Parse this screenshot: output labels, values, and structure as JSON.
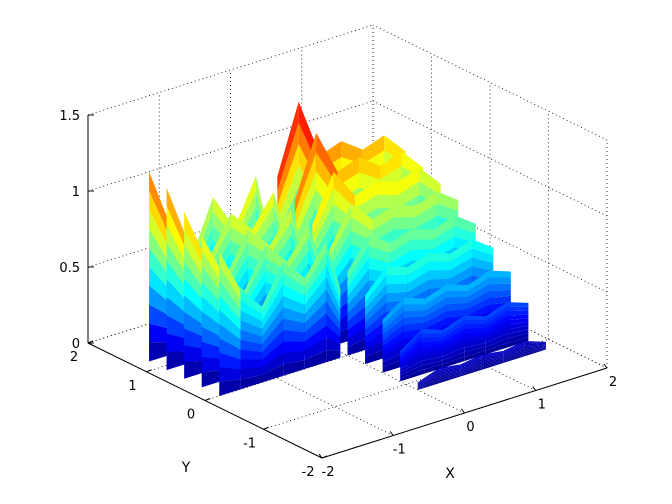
{
  "chart_data": {
    "type": "surface",
    "title": "",
    "xlabel": "X",
    "ylabel": "Y",
    "zlabel": "",
    "xlim": [
      -2,
      2
    ],
    "ylim": [
      -2,
      2
    ],
    "zlim": [
      0,
      1.5
    ],
    "x_ticks": [
      -2,
      -1,
      0,
      1,
      2
    ],
    "y_ticks": [
      -2,
      -1,
      0,
      1,
      2
    ],
    "z_ticks": [
      0,
      0.5,
      1,
      1.5
    ],
    "x_tick_labels": [
      "-2",
      "-1",
      "0",
      "1",
      "2"
    ],
    "y_tick_labels": [
      "-2",
      "-1",
      "0",
      "1",
      "2"
    ],
    "z_tick_labels": [
      "0",
      "0.5",
      "1",
      "1.5"
    ],
    "grid": true,
    "box": false,
    "colormap": "jet",
    "colormap_stops": [
      "#00008f",
      "#0000ff",
      "#0080ff",
      "#00ffff",
      "#80ff80",
      "#ffff00",
      "#ff8000",
      "#ff0000",
      "#800000"
    ],
    "surface_rows": [
      {
        "y": 1.2,
        "x": [
          -1.8,
          -1.5,
          -1.2,
          -0.9,
          -0.6,
          -0.3,
          -0.1
        ],
        "z": [
          1.25,
          0.85,
          0.6,
          0.95,
          0.7,
          1.0,
          0.55
        ]
      },
      {
        "y": 0.9,
        "x": [
          -1.8,
          -1.5,
          -1.2,
          -0.9,
          -0.6,
          -0.3,
          -0.1
        ],
        "z": [
          1.2,
          0.8,
          0.65,
          0.9,
          0.75,
          0.95,
          0.6
        ]
      },
      {
        "y": 0.6,
        "x": [
          -1.8,
          -1.5,
          -1.2,
          -0.9,
          -0.6,
          -0.3,
          -0.1
        ],
        "z": [
          1.1,
          0.75,
          0.6,
          0.85,
          0.7,
          0.9,
          0.55
        ]
      },
      {
        "y": 0.3,
        "x": [
          -1.8,
          -1.5,
          -1.2,
          -0.9,
          -0.6,
          -0.3,
          -0.1
        ],
        "z": [
          1.0,
          0.7,
          0.55,
          0.8,
          0.65,
          0.85,
          0.5
        ]
      },
      {
        "y": 0.0,
        "x": [
          -1.8,
          -1.5,
          -1.2,
          -0.9,
          -0.6,
          -0.3,
          -0.1
        ],
        "z": [
          0.95,
          0.65,
          0.5,
          0.75,
          0.6,
          0.8,
          0.45
        ]
      },
      {
        "y": 1.2,
        "x": [
          0.0,
          0.3,
          0.6,
          0.9,
          1.2,
          1.5,
          1.8
        ],
        "z": [
          0.95,
          1.4,
          1.0,
          1.05,
          0.95,
          1.0,
          0.85
        ]
      },
      {
        "y": 0.9,
        "x": [
          0.0,
          0.3,
          0.6,
          0.9,
          1.2,
          1.5,
          1.8
        ],
        "z": [
          0.85,
          1.25,
          0.95,
          1.0,
          0.9,
          0.95,
          0.8
        ]
      },
      {
        "y": 0.6,
        "x": [
          0.0,
          0.3,
          0.6,
          0.9,
          1.2,
          1.5,
          1.8
        ],
        "z": [
          0.75,
          1.05,
          0.85,
          0.9,
          0.85,
          0.9,
          0.75
        ]
      },
      {
        "y": 0.3,
        "x": [
          0.0,
          0.3,
          0.6,
          0.9,
          1.2,
          1.5,
          1.8
        ],
        "z": [
          0.65,
          0.9,
          0.75,
          0.8,
          0.75,
          0.8,
          0.7
        ]
      },
      {
        "y": 0.0,
        "x": [
          0.0,
          0.3,
          0.6,
          0.9,
          1.2,
          1.5,
          1.8
        ],
        "z": [
          0.55,
          0.75,
          0.65,
          0.7,
          0.65,
          0.7,
          0.6
        ]
      },
      {
        "y": -0.3,
        "x": [
          0.0,
          0.3,
          0.6,
          0.9,
          1.2,
          1.5,
          1.8
        ],
        "z": [
          0.45,
          0.6,
          0.55,
          0.6,
          0.55,
          0.6,
          0.5
        ]
      },
      {
        "y": -0.6,
        "x": [
          0.0,
          0.3,
          0.6,
          0.9,
          1.2,
          1.5,
          1.8
        ],
        "z": [
          0.35,
          0.45,
          0.4,
          0.45,
          0.4,
          0.45,
          0.4
        ]
      },
      {
        "y": -0.9,
        "x": [
          0.0,
          0.3,
          0.6,
          0.9,
          1.2,
          1.5,
          1.8
        ],
        "z": [
          0.2,
          0.3,
          0.25,
          0.3,
          0.25,
          0.3,
          0.25
        ]
      },
      {
        "y": -1.2,
        "x": [
          0.0,
          0.3,
          0.6,
          0.9,
          1.2,
          1.5,
          1.8
        ],
        "z": [
          0.05,
          0.1,
          0.08,
          0.1,
          0.08,
          0.1,
          0.05
        ]
      }
    ]
  }
}
